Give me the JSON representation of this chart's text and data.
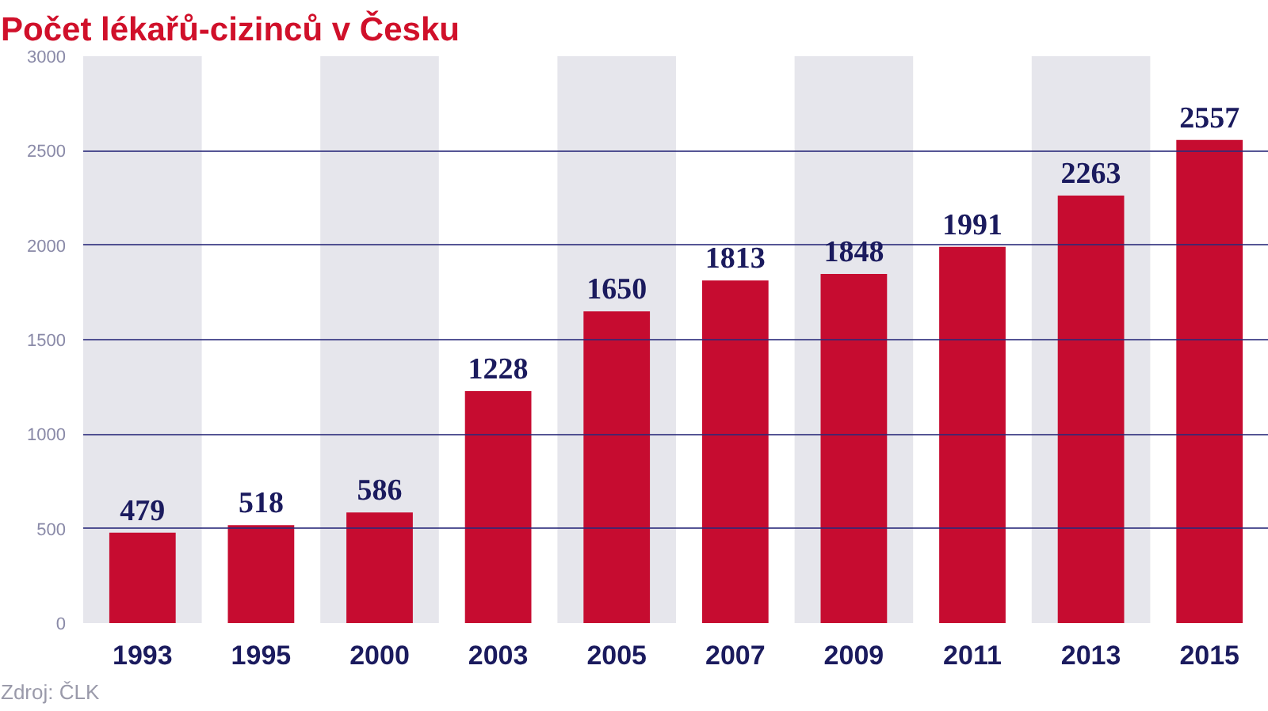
{
  "chart_data": {
    "type": "bar",
    "title": "Počet lékařů-cizinců v Česku",
    "categories": [
      "1993",
      "1995",
      "2000",
      "2003",
      "2005",
      "2007",
      "2009",
      "2011",
      "2013",
      "2015"
    ],
    "values": [
      479,
      518,
      586,
      1228,
      1650,
      1813,
      1848,
      1991,
      2263,
      2557
    ],
    "color": "#c60c30",
    "data_labels": true,
    "ylim": [
      0,
      3000
    ],
    "yticks": [
      0,
      500,
      1000,
      1500,
      2000,
      2500,
      3000
    ],
    "grid": "y",
    "bands": [
      {
        "axis": "x",
        "from": "1993",
        "to": "1993",
        "color": "#e6e6ec"
      },
      {
        "axis": "x",
        "from": "2000",
        "to": "2000",
        "color": "#e6e6ec"
      },
      {
        "axis": "x",
        "from": "2005",
        "to": "2005",
        "color": "#e6e6ec"
      },
      {
        "axis": "x",
        "from": "2009",
        "to": "2009",
        "color": "#e6e6ec"
      },
      {
        "axis": "x",
        "from": "2013",
        "to": "2013",
        "color": "#e6e6ec"
      }
    ],
    "annotations": [
      "Zdroj: ČLK"
    ]
  }
}
